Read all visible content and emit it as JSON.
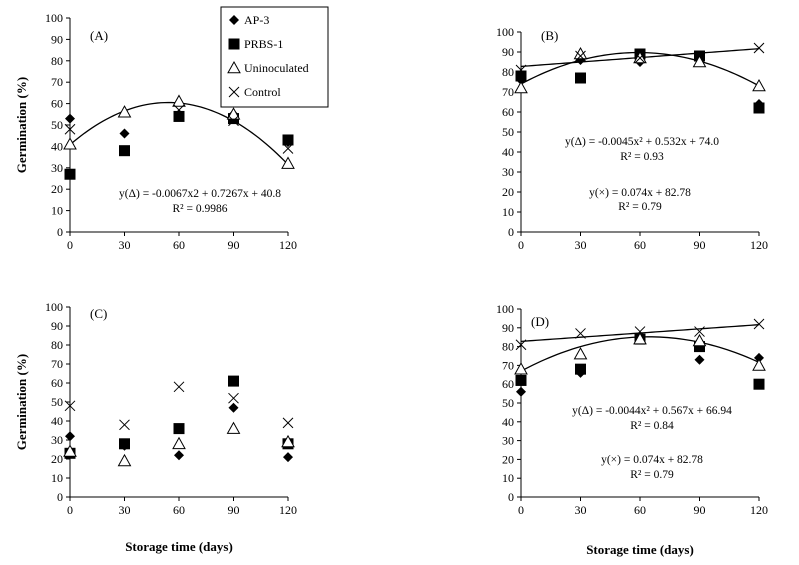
{
  "chart_data": [
    {
      "type": "scatter",
      "panel": "(A)",
      "x": [
        0,
        30,
        60,
        90,
        120
      ],
      "ylim": [
        0,
        100
      ],
      "yticks": [
        0,
        10,
        20,
        30,
        40,
        50,
        60,
        70,
        80,
        90,
        100
      ],
      "xticks": [
        0,
        30,
        60,
        90,
        120
      ],
      "ylabel": "Germination (%)",
      "xlabel": "",
      "series": [
        {
          "name": "AP-3",
          "marker": "diamond",
          "values": [
            53,
            46,
            55,
            55,
            42
          ]
        },
        {
          "name": "PRBS-1",
          "marker": "square",
          "values": [
            27,
            38,
            54,
            53,
            43
          ]
        },
        {
          "name": "Uninoculated",
          "marker": "triangle",
          "values": [
            41,
            56,
            61,
            55,
            32
          ]
        },
        {
          "name": "Control",
          "marker": "cross",
          "values": [
            48,
            38,
            57,
            52,
            39
          ]
        }
      ],
      "fits": [
        {
          "kind": "quadratic",
          "a": -0.0067,
          "b": 0.7267,
          "c": 40.8
        }
      ],
      "equations": [
        "y(Δ) = -0.0067x2 + 0.7267x + 40.8",
        "R² = 0.9986"
      ]
    },
    {
      "type": "scatter",
      "panel": "(B)",
      "x": [
        0,
        30,
        60,
        90,
        120
      ],
      "ylim": [
        0,
        100
      ],
      "yticks": [
        0,
        10,
        20,
        30,
        40,
        50,
        60,
        70,
        80,
        90,
        100
      ],
      "xticks": [
        0,
        30,
        60,
        90,
        120
      ],
      "ylabel": "",
      "xlabel": "",
      "series": [
        {
          "name": "AP-3",
          "marker": "diamond",
          "values": [
            76,
            86,
            85,
            87,
            64
          ]
        },
        {
          "name": "PRBS-1",
          "marker": "square",
          "values": [
            78,
            77,
            89,
            88,
            62
          ]
        },
        {
          "name": "Uninoculated",
          "marker": "triangle",
          "values": [
            72,
            89,
            87,
            85,
            73
          ]
        },
        {
          "name": "Control",
          "marker": "cross",
          "values": [
            81,
            88,
            87,
            88,
            92
          ]
        }
      ],
      "fits": [
        {
          "kind": "quadratic",
          "a": -0.0045,
          "b": 0.532,
          "c": 74.0
        },
        {
          "kind": "linear",
          "a": 0,
          "b": 0.074,
          "c": 82.78
        }
      ],
      "equations": [
        "y(Δ) = -0.0045x² + 0.532x + 74.0",
        "R² = 0.93",
        "y(×) = 0.074x + 82.78",
        "R² = 0.79"
      ]
    },
    {
      "type": "scatter",
      "panel": "(C)",
      "x": [
        0,
        30,
        60,
        90,
        120
      ],
      "ylim": [
        0,
        100
      ],
      "yticks": [
        0,
        10,
        20,
        30,
        40,
        50,
        60,
        70,
        80,
        90,
        100
      ],
      "xticks": [
        0,
        30,
        60,
        90,
        120
      ],
      "ylabel": "Germination (%)",
      "xlabel": "Storage time (days)",
      "series": [
        {
          "name": "AP-3",
          "marker": "diamond",
          "values": [
            32,
            27,
            22,
            47,
            21
          ]
        },
        {
          "name": "PRBS-1",
          "marker": "square",
          "values": [
            23,
            28,
            36,
            61,
            28
          ]
        },
        {
          "name": "Uninoculated",
          "marker": "triangle",
          "values": [
            24,
            19,
            28,
            36,
            29
          ]
        },
        {
          "name": "Control",
          "marker": "cross",
          "values": [
            48,
            38,
            58,
            52,
            39
          ]
        }
      ],
      "fits": [],
      "equations": []
    },
    {
      "type": "scatter",
      "panel": "(D)",
      "x": [
        0,
        30,
        60,
        90,
        120
      ],
      "ylim": [
        0,
        100
      ],
      "yticks": [
        0,
        10,
        20,
        30,
        40,
        50,
        60,
        70,
        80,
        90,
        100
      ],
      "xticks": [
        0,
        30,
        60,
        90,
        120
      ],
      "ylabel": "",
      "xlabel": "Storage time (days)",
      "series": [
        {
          "name": "AP-3",
          "marker": "diamond",
          "values": [
            56,
            66,
            84,
            73,
            74
          ]
        },
        {
          "name": "PRBS-1",
          "marker": "square",
          "values": [
            62,
            68,
            84,
            80,
            60
          ]
        },
        {
          "name": "Uninoculated",
          "marker": "triangle",
          "values": [
            68,
            76,
            84,
            83,
            70
          ]
        },
        {
          "name": "Control",
          "marker": "cross",
          "values": [
            81,
            87,
            88,
            88,
            92
          ]
        }
      ],
      "fits": [
        {
          "kind": "quadratic",
          "a": -0.0044,
          "b": 0.567,
          "c": 66.94
        },
        {
          "kind": "linear",
          "a": 0,
          "b": 0.074,
          "c": 82.78
        }
      ],
      "equations": [
        "y(Δ) = -0.0044x² + 0.567x + 66.94",
        "R² = 0.84",
        "y(×) = 0.074x + 82.78",
        "R² = 0.79"
      ]
    }
  ],
  "legend": {
    "placement": "top-left-panel-right",
    "entries": [
      {
        "label": "AP-3",
        "marker": "diamond"
      },
      {
        "label": "PRBS-1",
        "marker": "square"
      },
      {
        "label": "Uninoculated",
        "marker": "triangle"
      },
      {
        "label": "Control",
        "marker": "cross"
      }
    ]
  }
}
